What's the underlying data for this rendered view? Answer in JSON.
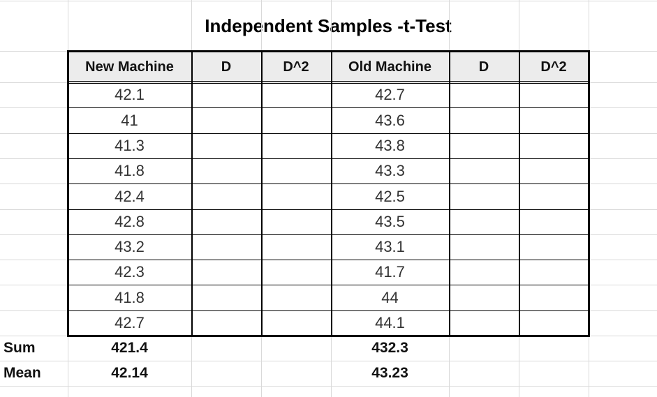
{
  "title": "Independent Samples -t-Test",
  "headers": [
    "New Machine",
    "D",
    "D^2",
    "Old Machine",
    "D",
    "D^2"
  ],
  "new_machine": [
    "42.1",
    "41",
    "41.3",
    "41.8",
    "42.4",
    "42.8",
    "43.2",
    "42.3",
    "41.8",
    "42.7"
  ],
  "old_machine": [
    "42.7",
    "43.6",
    "43.8",
    "43.3",
    "42.5",
    "43.5",
    "43.1",
    "41.7",
    "44",
    "44.1"
  ],
  "summary": [
    {
      "label": "Sum",
      "new": "421.4",
      "old": "432.3"
    },
    {
      "label": "Mean",
      "new": "42.14",
      "old": "43.23"
    }
  ]
}
